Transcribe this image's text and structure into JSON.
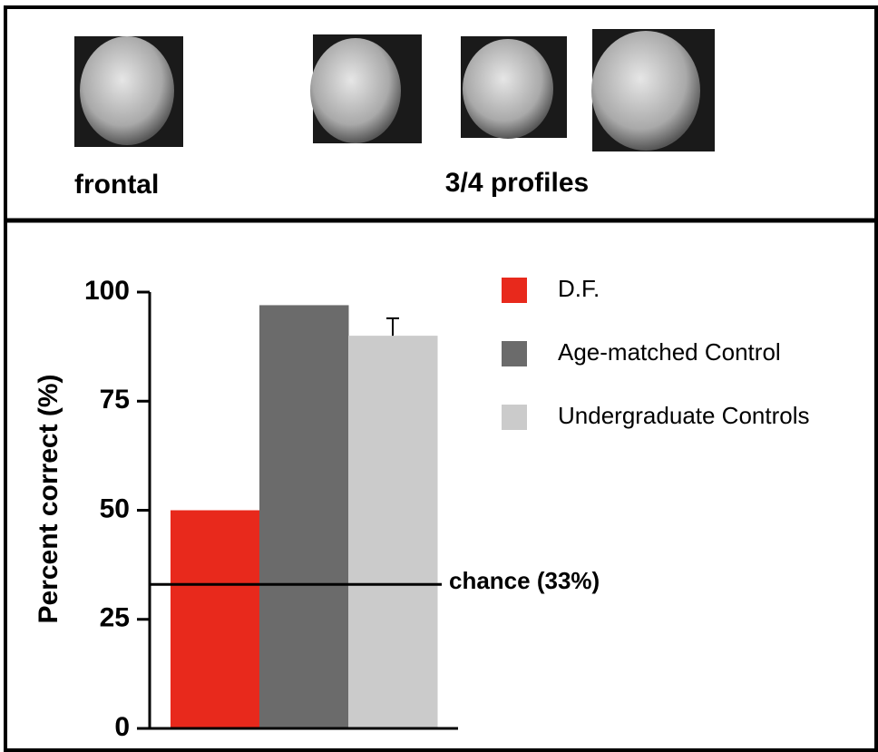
{
  "header": {
    "frontal_label": "frontal",
    "profiles_label": "3/4 profiles"
  },
  "chart_data": {
    "type": "bar",
    "ylabel": "Percent correct (%)",
    "ylim": [
      0,
      100
    ],
    "yticks": [
      0,
      25,
      50,
      75,
      100
    ],
    "series": [
      {
        "name": "D.F.",
        "color": "#e8291c",
        "values": [
          50
        ]
      },
      {
        "name": "Age-matched Control",
        "color": "#6b6b6b",
        "values": [
          97
        ]
      },
      {
        "name": "Undergraduate Controls",
        "color": "#cbcbcb",
        "values": [
          90
        ],
        "errors": [
          4
        ]
      }
    ],
    "annotations": [
      {
        "text": "chance (33%)",
        "value": 33
      }
    ]
  }
}
